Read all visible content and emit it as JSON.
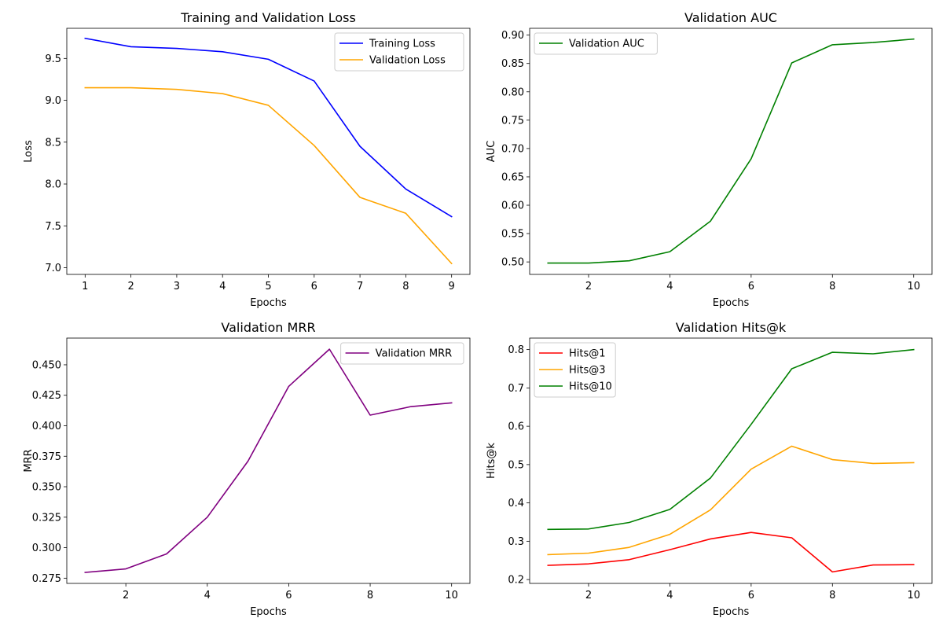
{
  "chart_data": [
    {
      "type": "line",
      "title": "Training and Validation Loss",
      "xlabel": "Epochs",
      "ylabel": "Loss",
      "xlim": [
        0.6,
        9.4
      ],
      "ylim": [
        6.92,
        9.86
      ],
      "xticks": [
        1,
        2,
        3,
        4,
        5,
        6,
        7,
        8,
        9
      ],
      "yticks": [
        7.0,
        7.5,
        8.0,
        8.5,
        9.0,
        9.5
      ],
      "ytick_labels": [
        "7.0",
        "7.5",
        "8.0",
        "8.5",
        "9.0",
        "9.5"
      ],
      "grid": false,
      "legend": "upper right",
      "x": [
        1,
        2,
        3,
        4,
        5,
        6,
        7,
        8,
        9
      ],
      "series": [
        {
          "name": "Training Loss",
          "color": "#0000ff",
          "values": [
            9.74,
            9.64,
            9.62,
            9.58,
            9.49,
            9.23,
            8.45,
            7.94,
            7.61
          ]
        },
        {
          "name": "Validation Loss",
          "color": "#ffa500",
          "values": [
            9.15,
            9.15,
            9.13,
            9.08,
            8.94,
            8.46,
            7.84,
            7.65,
            7.05
          ]
        }
      ]
    },
    {
      "type": "line",
      "title": "Validation AUC",
      "xlabel": "Epochs",
      "ylabel": "AUC",
      "xlim": [
        0.55,
        10.45
      ],
      "ylim": [
        0.478,
        0.912
      ],
      "xticks": [
        2,
        4,
        6,
        8,
        10
      ],
      "yticks": [
        0.5,
        0.55,
        0.6,
        0.65,
        0.7,
        0.75,
        0.8,
        0.85,
        0.9
      ],
      "ytick_labels": [
        "0.50",
        "0.55",
        "0.60",
        "0.65",
        "0.70",
        "0.75",
        "0.80",
        "0.85",
        "0.90"
      ],
      "grid": false,
      "legend": "upper left",
      "x": [
        1,
        2,
        3,
        4,
        5,
        6,
        7,
        8,
        9,
        10
      ],
      "series": [
        {
          "name": "Validation AUC",
          "color": "#008000",
          "values": [
            0.498,
            0.498,
            0.502,
            0.518,
            0.572,
            0.682,
            0.851,
            0.883,
            0.887,
            0.893
          ]
        }
      ]
    },
    {
      "type": "line",
      "title": "Validation MRR",
      "xlabel": "Epochs",
      "ylabel": "MRR",
      "xlim": [
        0.55,
        10.45
      ],
      "ylim": [
        0.2707,
        0.4719
      ],
      "xticks": [
        2,
        4,
        6,
        8,
        10
      ],
      "yticks": [
        0.275,
        0.3,
        0.325,
        0.35,
        0.375,
        0.4,
        0.425,
        0.45
      ],
      "ytick_labels": [
        "0.275",
        "0.300",
        "0.325",
        "0.350",
        "0.375",
        "0.400",
        "0.425",
        "0.450"
      ],
      "grid": false,
      "legend": "upper right",
      "x": [
        1,
        2,
        3,
        4,
        5,
        6,
        7,
        8,
        9,
        10
      ],
      "series": [
        {
          "name": "Validation MRR",
          "color": "#800080",
          "values": [
            0.2797,
            0.2826,
            0.2949,
            0.325,
            0.371,
            0.4323,
            0.4628,
            0.4087,
            0.4157,
            0.4188
          ]
        }
      ]
    },
    {
      "type": "line",
      "title": "Validation Hits@k",
      "xlabel": "Epochs",
      "ylabel": "Hits@k",
      "xlim": [
        0.55,
        10.45
      ],
      "ylim": [
        0.19,
        0.83
      ],
      "xticks": [
        2,
        4,
        6,
        8,
        10
      ],
      "yticks": [
        0.2,
        0.3,
        0.4,
        0.5,
        0.6,
        0.7,
        0.8
      ],
      "ytick_labels": [
        "0.2",
        "0.3",
        "0.4",
        "0.5",
        "0.6",
        "0.7",
        "0.8"
      ],
      "grid": false,
      "legend": "upper left",
      "x": [
        1,
        2,
        3,
        4,
        5,
        6,
        7,
        8,
        9,
        10
      ],
      "series": [
        {
          "name": "Hits@1",
          "color": "#ff0000",
          "values": [
            0.237,
            0.241,
            0.252,
            0.278,
            0.306,
            0.323,
            0.309,
            0.22,
            0.238,
            0.239
          ]
        },
        {
          "name": "Hits@3",
          "color": "#ffa500",
          "values": [
            0.265,
            0.269,
            0.284,
            0.318,
            0.382,
            0.488,
            0.548,
            0.513,
            0.503,
            0.505
          ]
        },
        {
          "name": "Hits@10",
          "color": "#008000",
          "values": [
            0.331,
            0.332,
            0.349,
            0.383,
            0.465,
            0.605,
            0.75,
            0.793,
            0.789,
            0.8
          ]
        }
      ]
    }
  ]
}
